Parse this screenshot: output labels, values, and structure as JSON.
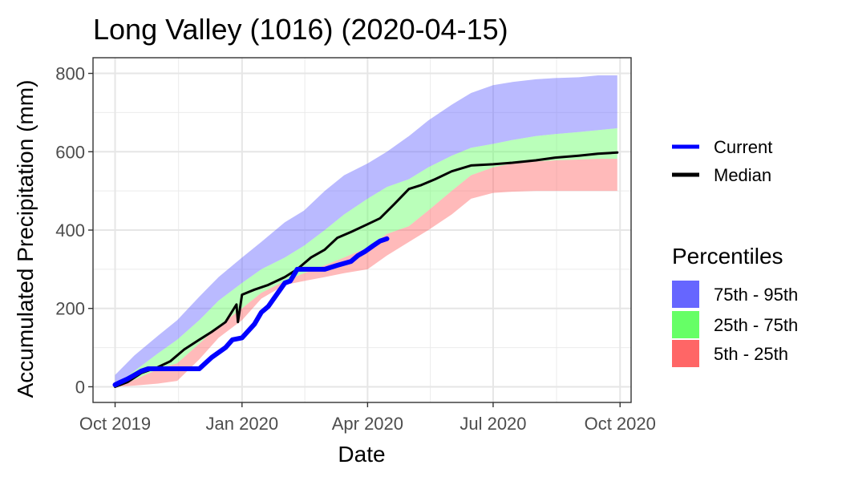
{
  "chart_data": {
    "type": "area",
    "title": "Long Valley (1016) (2020-04-15)",
    "xlabel": "Date",
    "ylabel": "Accumulated Precipitation (mm)",
    "x_range": [
      "2019-09-15",
      "2020-10-09"
    ],
    "ylim": [
      -40,
      840
    ],
    "x_ticks": [
      {
        "date": "2019-10-01",
        "label": "Oct 2019"
      },
      {
        "date": "2020-01-01",
        "label": "Jan 2020"
      },
      {
        "date": "2020-04-01",
        "label": "Apr 2020"
      },
      {
        "date": "2020-07-01",
        "label": "Jul 2020"
      },
      {
        "date": "2020-10-01",
        "label": "Oct 2020"
      }
    ],
    "y_ticks": [
      0,
      200,
      400,
      600,
      800
    ],
    "grid": true,
    "percentile_dates": [
      "2019-10-01",
      "2019-10-15",
      "2019-11-01",
      "2019-11-15",
      "2019-12-01",
      "2019-12-15",
      "2020-01-01",
      "2020-01-15",
      "2020-02-01",
      "2020-02-15",
      "2020-03-01",
      "2020-03-15",
      "2020-04-01",
      "2020-04-15",
      "2020-05-01",
      "2020-05-15",
      "2020-06-01",
      "2020-06-15",
      "2020-07-01",
      "2020-07-15",
      "2020-08-01",
      "2020-08-15",
      "2020-09-01",
      "2020-09-15",
      "2020-09-29"
    ],
    "p5": [
      0,
      3,
      8,
      15,
      70,
      125,
      170,
      225,
      260,
      270,
      280,
      290,
      300,
      335,
      370,
      400,
      440,
      480,
      495,
      498,
      500,
      500,
      500,
      500,
      500
    ],
    "p25": [
      0,
      18,
      45,
      60,
      110,
      155,
      200,
      240,
      270,
      290,
      310,
      330,
      355,
      390,
      410,
      450,
      500,
      540,
      560,
      570,
      575,
      578,
      580,
      582,
      582
    ],
    "p75": [
      3,
      40,
      85,
      120,
      170,
      220,
      265,
      300,
      330,
      360,
      400,
      440,
      480,
      510,
      530,
      560,
      590,
      610,
      620,
      630,
      640,
      645,
      650,
      655,
      660
    ],
    "p95": [
      30,
      80,
      130,
      170,
      230,
      280,
      330,
      370,
      420,
      450,
      500,
      540,
      570,
      600,
      640,
      680,
      720,
      750,
      770,
      778,
      785,
      788,
      790,
      795,
      795
    ],
    "series": [
      {
        "name": "Current",
        "color": "#0000ff",
        "x": [
          "2019-10-01",
          "2019-10-05",
          "2019-10-10",
          "2019-10-15",
          "2019-10-20",
          "2019-10-25",
          "2019-11-01",
          "2019-11-10",
          "2019-11-20",
          "2019-12-01",
          "2019-12-10",
          "2019-12-20",
          "2019-12-25",
          "2020-01-01",
          "2020-01-10",
          "2020-01-15",
          "2020-01-20",
          "2020-01-25",
          "2020-02-01",
          "2020-02-05",
          "2020-02-10",
          "2020-02-15",
          "2020-02-20",
          "2020-02-25",
          "2020-03-01",
          "2020-03-10",
          "2020-03-20",
          "2020-03-25",
          "2020-03-30",
          "2020-04-05",
          "2020-04-10",
          "2020-04-15"
        ],
        "y": [
          5,
          12,
          20,
          30,
          40,
          46,
          46,
          46,
          46,
          46,
          75,
          100,
          120,
          125,
          160,
          190,
          205,
          230,
          265,
          270,
          300,
          300,
          300,
          300,
          300,
          310,
          320,
          335,
          345,
          360,
          372,
          378
        ]
      },
      {
        "name": "Median",
        "color": "#000000",
        "x": [
          "2019-10-01",
          "2019-10-10",
          "2019-10-20",
          "2019-11-01",
          "2019-11-10",
          "2019-11-20",
          "2019-12-01",
          "2019-12-10",
          "2019-12-20",
          "2019-12-28",
          "2019-12-29",
          "2020-01-01",
          "2020-01-10",
          "2020-01-20",
          "2020-02-01",
          "2020-02-10",
          "2020-02-20",
          "2020-03-01",
          "2020-03-10",
          "2020-03-20",
          "2020-04-01",
          "2020-04-10",
          "2020-04-20",
          "2020-05-01",
          "2020-05-10",
          "2020-05-20",
          "2020-06-01",
          "2020-06-15",
          "2020-07-01",
          "2020-07-15",
          "2020-08-01",
          "2020-08-15",
          "2020-09-01",
          "2020-09-15",
          "2020-09-29"
        ],
        "y": [
          0,
          12,
          35,
          50,
          65,
          95,
          120,
          140,
          165,
          210,
          165,
          235,
          248,
          260,
          280,
          300,
          330,
          350,
          380,
          395,
          415,
          430,
          465,
          505,
          515,
          530,
          550,
          565,
          568,
          572,
          578,
          585,
          590,
          595,
          598
        ]
      }
    ],
    "bands": [
      {
        "name": "75th - 95th",
        "color": "#6666ff"
      },
      {
        "name": "25th - 75th",
        "color": "#66ff66"
      },
      {
        "name": "5th - 25th",
        "color": "#ff6666"
      }
    ],
    "legend": {
      "placement": "right",
      "lines_title": "",
      "bands_title": "Percentiles"
    }
  }
}
